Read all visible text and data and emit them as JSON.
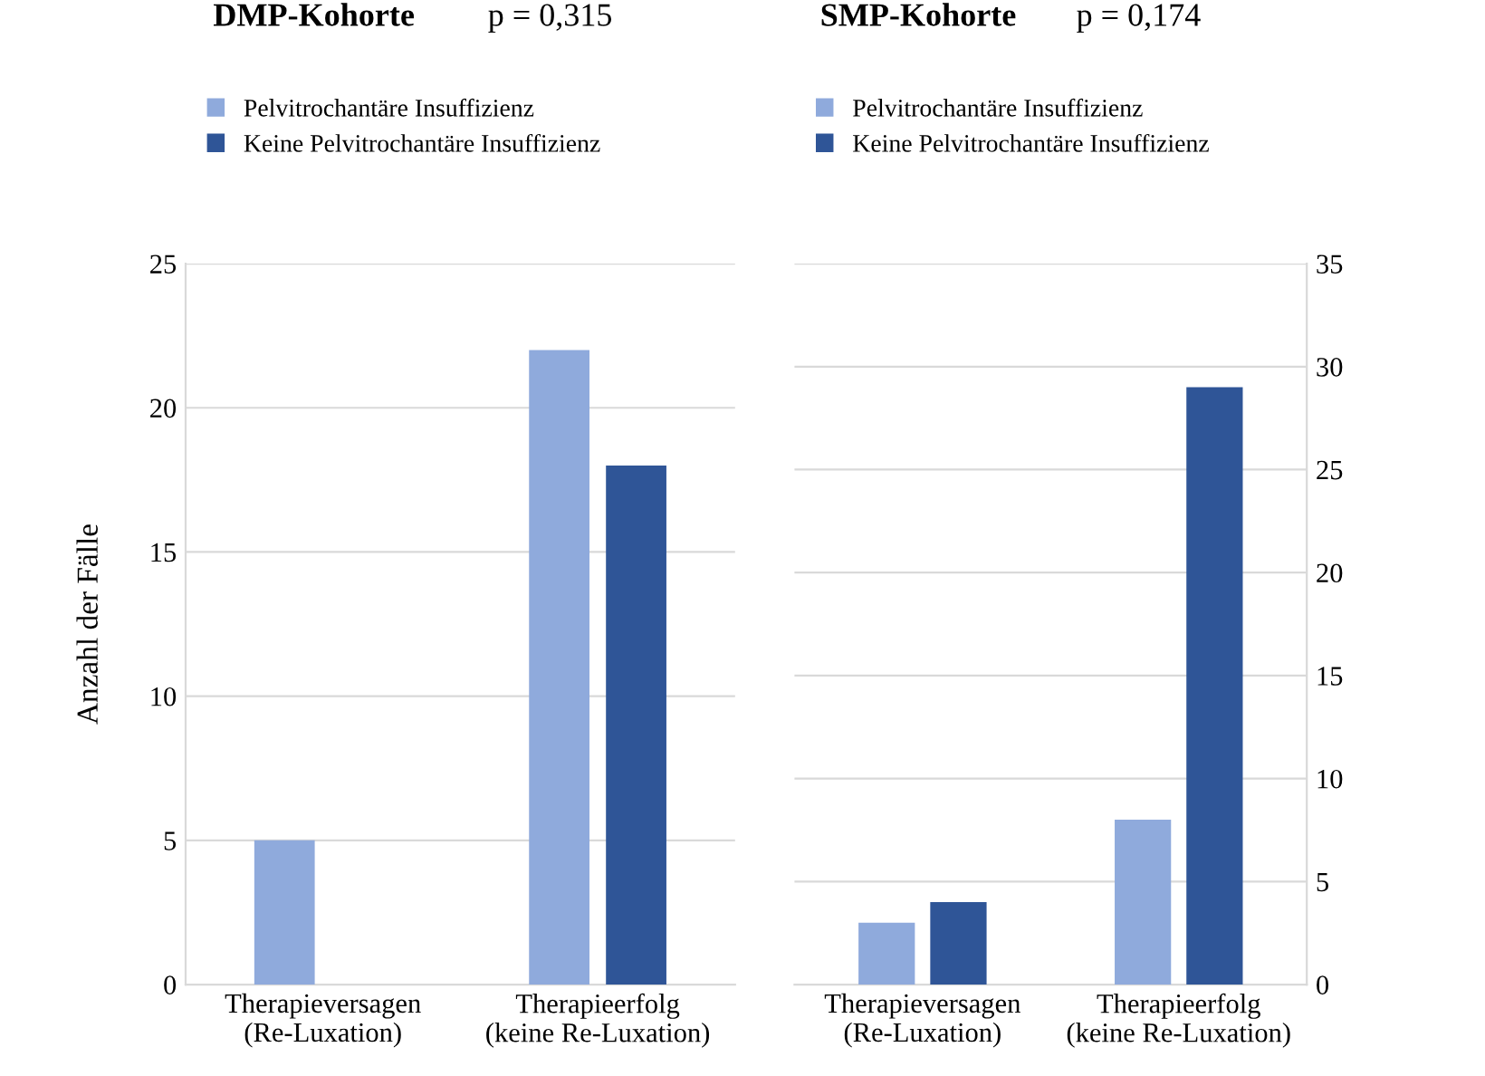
{
  "chart_data": [
    {
      "type": "bar",
      "title": "DMP-Kohorte",
      "ylabel": "Anzahl der Fälle",
      "annotations": [
        "p = 0,315"
      ],
      "categories": [
        "Therapieversagen\n(Re-Luxation)",
        "Therapieerfolg\n(keine Re-Luxation)"
      ],
      "series": [
        {
          "name": "Pelvitrochantäre Insuffizienz",
          "color": "#8faadc",
          "values": [
            5,
            22
          ]
        },
        {
          "name": "Keine Pelvitrochantäre Insuffizienz",
          "color": "#2f5597",
          "values": [
            0,
            18
          ]
        }
      ],
      "ylim": [
        0,
        25
      ],
      "yticks": [
        0,
        5,
        10,
        15,
        20,
        25
      ],
      "grid": "y",
      "legend": "top"
    },
    {
      "type": "bar",
      "title": "SMP-Kohorte",
      "annotations": [
        "p = 0,174"
      ],
      "categories": [
        "Therapieversagen\n(Re-Luxation)",
        "Therapieerfolg\n(keine Re-Luxation)"
      ],
      "series": [
        {
          "name": "Pelvitrochantäre Insuffizienz",
          "color": "#8faadc",
          "values": [
            3,
            8
          ]
        },
        {
          "name": "Keine Pelvitrochantäre Insuffizienz",
          "color": "#2f5597",
          "values": [
            4,
            29
          ]
        }
      ],
      "ylim": [
        0,
        35
      ],
      "yticks": [
        0,
        5,
        10,
        15,
        20,
        25,
        30,
        35
      ],
      "grid": "y",
      "legend": "top"
    }
  ]
}
